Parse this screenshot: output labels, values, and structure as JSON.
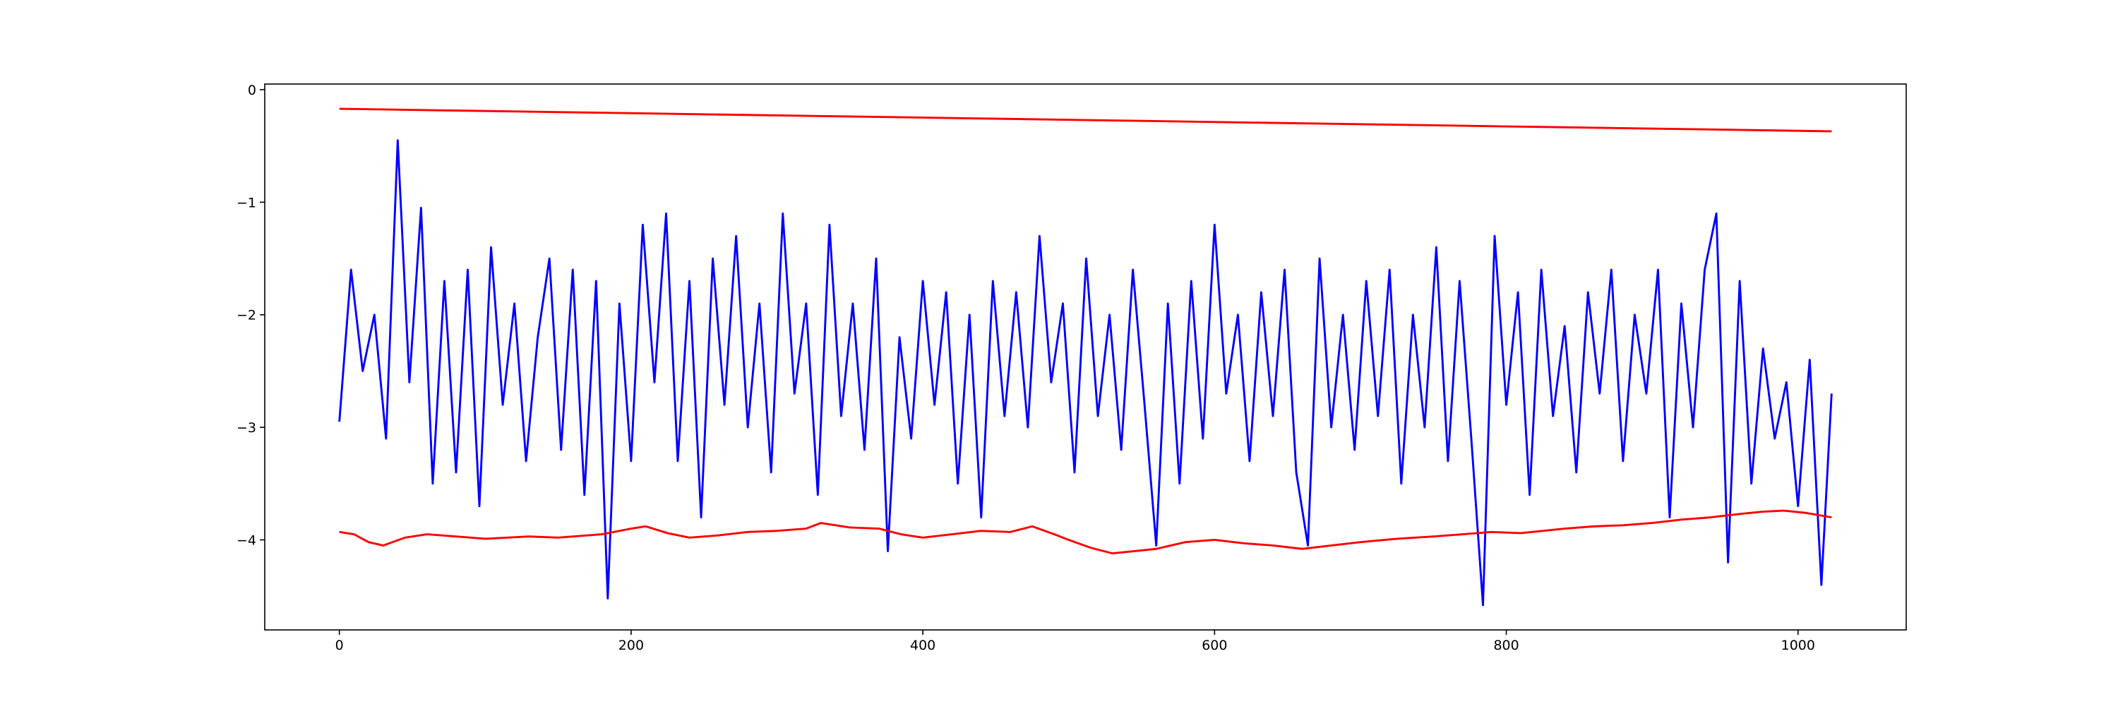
{
  "chart_data": {
    "type": "line",
    "xlim": [
      -51.15,
      1074.15
    ],
    "ylim": [
      -4.8,
      0.05
    ],
    "xticks": [
      0,
      200,
      400,
      600,
      800,
      1000
    ],
    "yticks": [
      {
        "value": 0,
        "label": "0"
      },
      {
        "value": -1,
        "label": "−1"
      },
      {
        "value": -2,
        "label": "−2"
      },
      {
        "value": -3,
        "label": "−3"
      },
      {
        "value": -4,
        "label": "−4"
      }
    ],
    "series": [
      {
        "color": "#ff0000",
        "x": [
          0,
          1023
        ],
        "values": [
          -0.17,
          -0.37
        ]
      },
      {
        "color": "#0000ff",
        "x": [
          0,
          8,
          16,
          24,
          32,
          40,
          48,
          56,
          64,
          72,
          80,
          88,
          96,
          104,
          112,
          120,
          128,
          136,
          144,
          152,
          160,
          168,
          176,
          184,
          192,
          200,
          208,
          216,
          224,
          232,
          240,
          248,
          256,
          264,
          272,
          280,
          288,
          296,
          304,
          312,
          320,
          328,
          336,
          344,
          352,
          360,
          368,
          376,
          384,
          392,
          400,
          408,
          416,
          424,
          432,
          440,
          448,
          456,
          464,
          472,
          480,
          488,
          496,
          504,
          512,
          520,
          528,
          536,
          544,
          552,
          560,
          568,
          576,
          584,
          592,
          600,
          608,
          616,
          624,
          632,
          640,
          648,
          656,
          664,
          672,
          680,
          688,
          696,
          704,
          712,
          720,
          728,
          736,
          744,
          752,
          760,
          768,
          776,
          784,
          792,
          800,
          808,
          816,
          824,
          832,
          840,
          848,
          856,
          864,
          872,
          880,
          888,
          896,
          904,
          912,
          920,
          928,
          936,
          944,
          952,
          960,
          968,
          976,
          984,
          992,
          1000,
          1008,
          1016,
          1023
        ],
        "values": [
          -2.95,
          -1.6,
          -2.5,
          -2.0,
          -3.1,
          -0.45,
          -2.6,
          -1.05,
          -3.5,
          -1.7,
          -3.4,
          -1.6,
          -3.7,
          -1.4,
          -2.8,
          -1.9,
          -3.3,
          -2.2,
          -1.5,
          -3.2,
          -1.6,
          -3.6,
          -1.7,
          -4.52,
          -1.9,
          -3.3,
          -1.2,
          -2.6,
          -1.1,
          -3.3,
          -1.7,
          -3.8,
          -1.5,
          -2.8,
          -1.3,
          -3.0,
          -1.9,
          -3.4,
          -1.1,
          -2.7,
          -1.9,
          -3.6,
          -1.2,
          -2.9,
          -1.9,
          -3.2,
          -1.5,
          -4.1,
          -2.2,
          -3.1,
          -1.7,
          -2.8,
          -1.8,
          -3.5,
          -2.0,
          -3.8,
          -1.7,
          -2.9,
          -1.8,
          -3.0,
          -1.3,
          -2.6,
          -1.9,
          -3.4,
          -1.5,
          -2.9,
          -2.0,
          -3.2,
          -1.6,
          -2.8,
          -4.05,
          -1.9,
          -3.5,
          -1.7,
          -3.1,
          -1.2,
          -2.7,
          -2.0,
          -3.3,
          -1.8,
          -2.9,
          -1.6,
          -3.4,
          -4.05,
          -1.5,
          -3.0,
          -2.0,
          -3.2,
          -1.7,
          -2.9,
          -1.6,
          -3.5,
          -2.0,
          -3.0,
          -1.4,
          -3.3,
          -1.7,
          -3.1,
          -4.58,
          -1.3,
          -2.8,
          -1.8,
          -3.6,
          -1.6,
          -2.9,
          -2.1,
          -3.4,
          -1.8,
          -2.7,
          -1.6,
          -3.3,
          -2.0,
          -2.7,
          -1.6,
          -3.8,
          -1.9,
          -3.0,
          -1.6,
          -1.1,
          -4.2,
          -1.7,
          -3.5,
          -2.3,
          -3.1,
          -2.6,
          -3.7,
          -2.4,
          -4.4,
          -2.7
        ]
      },
      {
        "color": "#ff0000",
        "x": [
          0,
          10,
          20,
          30,
          45,
          60,
          80,
          100,
          130,
          150,
          180,
          200,
          210,
          225,
          240,
          260,
          280,
          300,
          320,
          330,
          350,
          370,
          385,
          400,
          420,
          440,
          460,
          475,
          490,
          500,
          515,
          530,
          545,
          560,
          580,
          600,
          620,
          640,
          660,
          680,
          700,
          725,
          750,
          770,
          790,
          810,
          840,
          860,
          880,
          900,
          920,
          940,
          960,
          975,
          990,
          1005,
          1023
        ],
        "values": [
          -3.93,
          -3.95,
          -4.02,
          -4.05,
          -3.98,
          -3.95,
          -3.97,
          -3.99,
          -3.97,
          -3.98,
          -3.95,
          -3.9,
          -3.88,
          -3.94,
          -3.98,
          -3.96,
          -3.93,
          -3.92,
          -3.9,
          -3.85,
          -3.89,
          -3.9,
          -3.95,
          -3.98,
          -3.95,
          -3.92,
          -3.93,
          -3.88,
          -3.95,
          -4.0,
          -4.07,
          -4.12,
          -4.1,
          -4.08,
          -4.02,
          -4.0,
          -4.03,
          -4.05,
          -4.08,
          -4.05,
          -4.02,
          -3.99,
          -3.97,
          -3.95,
          -3.93,
          -3.94,
          -3.9,
          -3.88,
          -3.87,
          -3.85,
          -3.82,
          -3.8,
          -3.77,
          -3.75,
          -3.74,
          -3.76,
          -3.8
        ]
      }
    ]
  }
}
